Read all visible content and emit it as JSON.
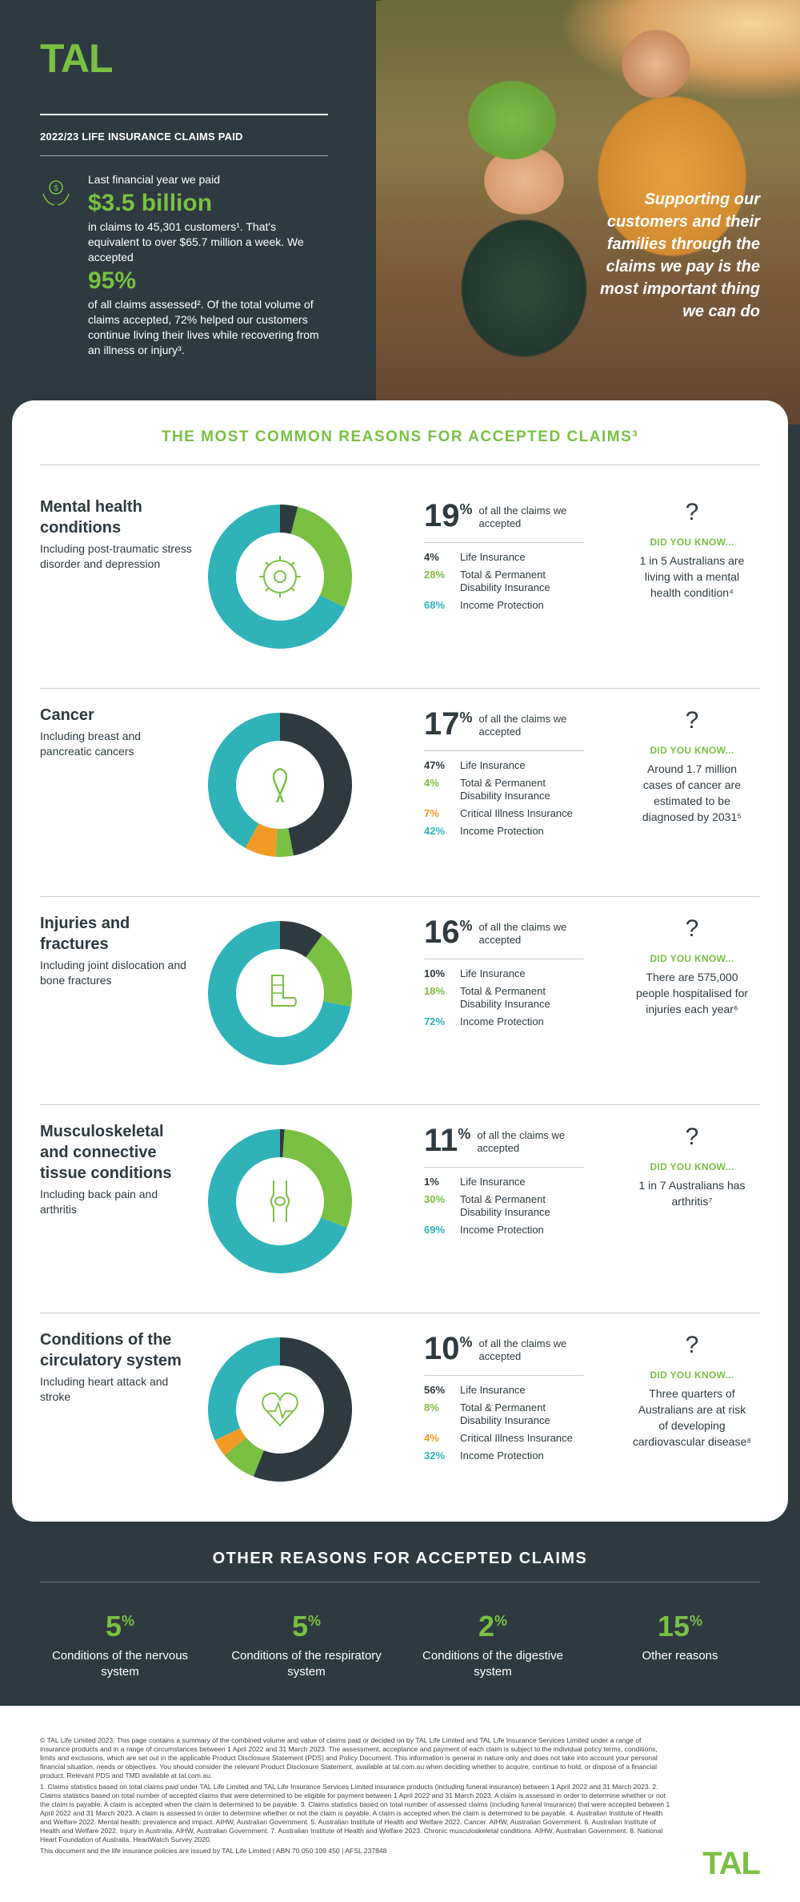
{
  "brand": {
    "logo": "TAL",
    "green": "#7ac043",
    "teal": "#2fb3b8",
    "dark": "#2e3a40",
    "orange": "#f39a26"
  },
  "hero": {
    "heading": "2022/23 LIFE INSURANCE CLAIMS PAID",
    "line1": "Last financial year we paid",
    "amount": "$3.5 billion",
    "line2": "in claims to 45,301 customers¹. That's equivalent to over $65.7 million a week. We accepted",
    "accepted_pct": "95%",
    "line3": "of all claims assessed². Of the total volume of claims accepted, 72% helped our customers continue living their lives while recovering from an illness or injury³.",
    "quote": "Supporting our customers and their families through the claims we pay is the most important thing we can do"
  },
  "main": {
    "title": "THE MOST COMMON REASONS FOR ACCEPTED CLAIMS³",
    "of_all": "of all the claims we accepted",
    "did_you_know": "DID YOU KNOW...",
    "sections": [
      {
        "title": "Mental health conditions",
        "subtitle": "Including post-traumatic stress disorder and depression",
        "pct": "19",
        "icon": "brain-gear-icon",
        "breakdown": [
          {
            "v": "4%",
            "l": "Life Insurance",
            "c": "#2e3a40"
          },
          {
            "v": "28%",
            "l": "Total & Permanent Disability Insurance",
            "c": "#7ac043"
          },
          {
            "v": "68%",
            "l": "Income Protection",
            "c": "#2fb3b8"
          }
        ],
        "fact": "1 in 5 Australians are living with a mental health condition⁴"
      },
      {
        "title": "Cancer",
        "subtitle": "Including breast and pancreatic cancers",
        "pct": "17",
        "icon": "cancer-ribbon-icon",
        "breakdown": [
          {
            "v": "47%",
            "l": "Life Insurance",
            "c": "#2e3a40"
          },
          {
            "v": "4%",
            "l": "Total & Permanent Disability Insurance",
            "c": "#7ac043"
          },
          {
            "v": "7%",
            "l": "Critical Illness Insurance",
            "c": "#f39a26"
          },
          {
            "v": "42%",
            "l": "Income Protection",
            "c": "#2fb3b8"
          }
        ],
        "fact": "Around 1.7 million cases of cancer are estimated to be diagnosed by 2031⁵"
      },
      {
        "title": "Injuries and fractures",
        "subtitle": "Including joint dislocation and bone fractures",
        "pct": "16",
        "icon": "leg-cast-icon",
        "breakdown": [
          {
            "v": "10%",
            "l": "Life Insurance",
            "c": "#2e3a40"
          },
          {
            "v": "18%",
            "l": "Total & Permanent Disability Insurance",
            "c": "#7ac043"
          },
          {
            "v": "72%",
            "l": "Income Protection",
            "c": "#2fb3b8"
          }
        ],
        "fact": "There are 575,000 people hospitalised for injuries each year⁶"
      },
      {
        "title": "Musculoskeletal and connective tissue conditions",
        "subtitle": "Including back pain and arthritis",
        "pct": "11",
        "icon": "knee-joint-icon",
        "breakdown": [
          {
            "v": "1%",
            "l": "Life Insurance",
            "c": "#2e3a40"
          },
          {
            "v": "30%",
            "l": "Total & Permanent Disability Insurance",
            "c": "#7ac043"
          },
          {
            "v": "69%",
            "l": "Income Protection",
            "c": "#2fb3b8"
          }
        ],
        "fact": "1 in 7 Australians has arthritis⁷"
      },
      {
        "title": "Conditions of the circulatory system",
        "subtitle": "Including heart attack and stroke",
        "pct": "10",
        "icon": "heart-pulse-icon",
        "breakdown": [
          {
            "v": "56%",
            "l": "Life Insurance",
            "c": "#2e3a40"
          },
          {
            "v": "8%",
            "l": "Total & Permanent Disability Insurance",
            "c": "#7ac043"
          },
          {
            "v": "4%",
            "l": "Critical Illness Insurance",
            "c": "#f39a26"
          },
          {
            "v": "32%",
            "l": "Income Protection",
            "c": "#2fb3b8"
          }
        ],
        "fact": "Three quarters of Australians are at risk of developing cardiovascular disease⁸"
      }
    ]
  },
  "chart_data": [
    {
      "type": "pie",
      "categories": [
        "Life Insurance",
        "Total & Permanent Disability Insurance",
        "Income Protection"
      ],
      "values": [
        4,
        28,
        68
      ]
    },
    {
      "type": "pie",
      "categories": [
        "Life Insurance",
        "Total & Permanent Disability Insurance",
        "Critical Illness Insurance",
        "Income Protection"
      ],
      "values": [
        47,
        4,
        7,
        42
      ]
    },
    {
      "type": "pie",
      "categories": [
        "Life Insurance",
        "Total & Permanent Disability Insurance",
        "Income Protection"
      ],
      "values": [
        10,
        18,
        72
      ]
    },
    {
      "type": "pie",
      "categories": [
        "Life Insurance",
        "Total & Permanent Disability Insurance",
        "Income Protection"
      ],
      "values": [
        1,
        30,
        69
      ]
    },
    {
      "type": "pie",
      "categories": [
        "Life Insurance",
        "Total & Permanent Disability Insurance",
        "Critical Illness Insurance",
        "Income Protection"
      ],
      "values": [
        56,
        8,
        4,
        32
      ]
    }
  ],
  "other": {
    "title": "OTHER REASONS FOR ACCEPTED CLAIMS",
    "items": [
      {
        "pct": "5",
        "label": "Conditions of the nervous system"
      },
      {
        "pct": "5",
        "label": "Conditions of the respiratory system"
      },
      {
        "pct": "2",
        "label": "Conditions of the digestive system"
      },
      {
        "pct": "15",
        "label": "Other reasons"
      }
    ]
  },
  "footer": {
    "p1": "© TAL Life Limited 2023. This page contains a summary of the combined volume and value of claims paid or decided on by TAL Life Limited and TAL Life Insurance Services Limited under a range of insurance products and in a range of circumstances between 1 April 2022 and 31 March 2023. The assessment, acceptance and payment of each claim is subject to the individual policy terms, conditions, limits and exclusions, which are set out in the applicable Product Disclosure Statement (PDS) and Policy Document. This information is general in nature only and does not take into account your personal financial situation, needs or objectives. You should consider the relevant Product Disclosure Statement, available at tal.com.au when deciding whether to acquire, continue to hold, or dispose of a financial product. Relevant PDS and TMD available at tal.com.au.",
    "p2": "1. Claims statistics based on total claims paid under TAL Life Limited and TAL Life Insurance Services Limited insurance products (including funeral insurance) between 1 April 2022 and 31 March 2023. 2. Claims statistics based on total number of accepted claims that were determined to be eligible for payment between 1 April 2022 and 31 March 2023. A claim is assessed in order to determine whether or not the claim is payable. A claim is accepted when the claim is determined to be payable. 3. Claims statistics based on total number of assessed claims (including funeral insurance) that were accepted between 1 April 2022 and 31 March 2023. A claim is assessed in order to determine whether or not the claim is payable. A claim is accepted when the claim is determined to be payable. 4. Australian Institute of Health and Welfare 2022. Mental health: prevalence and impact. AIHW, Australian Government. 5. Australian Institute of Health and Welfare 2022. Cancer. AIHW, Australian Government. 6. Australian Institute of Health and Welfare 2022. Injury in Australia. AIHW, Australian Government. 7. Australian Institute of Health and Welfare 2023. Chronic musculoskeletal conditions. AIHW, Australian Government. 8. National Heart Foundation of Australia. HeartWatch Survey 2020.",
    "p3": "This document and the life insurance policies are issued by TAL Life Limited | ABN 70 050 109 450 | AFSL 237848"
  }
}
